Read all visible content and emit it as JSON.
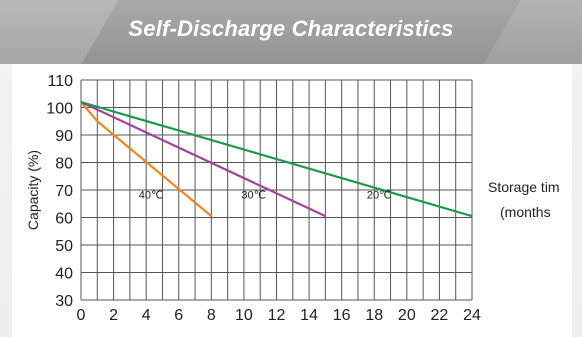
{
  "chart_data": {
    "type": "line",
    "title": "Self-Discharge Characteristics",
    "xlabel_lines": [
      "Storage tim",
      "(months"
    ],
    "ylabel": "Capacity (%)",
    "xlim": [
      0,
      24
    ],
    "ylim": [
      30,
      110
    ],
    "xticks": [
      0,
      2,
      4,
      6,
      8,
      10,
      12,
      14,
      16,
      18,
      20,
      22,
      24
    ],
    "yticks": [
      30,
      40,
      50,
      60,
      70,
      80,
      90,
      100,
      110
    ],
    "grid": true,
    "series": [
      {
        "name": "40℃",
        "color": "#f0871e",
        "points": [
          [
            0,
            102
          ],
          [
            1,
            95
          ],
          [
            8,
            60.5
          ]
        ]
      },
      {
        "name": "30℃",
        "color": "#a0449a",
        "points": [
          [
            0,
            102
          ],
          [
            15,
            60.5
          ]
        ]
      },
      {
        "name": "20℃",
        "color": "#1a9a4a",
        "points": [
          [
            0,
            102
          ],
          [
            24,
            60.5
          ]
        ]
      }
    ],
    "series_label_pos": [
      [
        4.3,
        67
      ],
      [
        10.6,
        67
      ],
      [
        18.3,
        67
      ]
    ]
  }
}
